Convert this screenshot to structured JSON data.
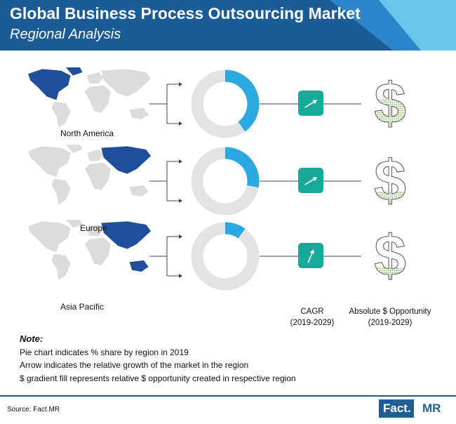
{
  "header": {
    "title": "Global Business Process Outsourcing Market",
    "subtitle": "Regional Analysis",
    "colors": {
      "dark": "#1c5c96",
      "mid": "#2c86c9",
      "light": "#6cc4ea"
    }
  },
  "columns": {
    "cagr": [
      "CAGR",
      "(2019-2029)"
    ],
    "opportunity": [
      "Absolute $ Opportunity",
      "(2019-2029)"
    ]
  },
  "chart_data": {
    "type": "pie",
    "series_name": "% share by region in 2019",
    "categories": [
      "North America",
      "Europe",
      "Asia Pacific"
    ],
    "values": [
      0.4,
      0.28,
      0.1
    ],
    "arrow_growth": [
      0.35,
      0.35,
      0.75
    ],
    "dollar_fill": [
      0.6,
      0.3,
      0.3
    ],
    "colors": {
      "share": "#2aa8e0",
      "rest": "#e3e3e3",
      "arrow_box": "#17a99a",
      "dollar_dots": "#6bb34a",
      "map": "#dcdcdc",
      "map_highlight": "#1f4f9a"
    }
  },
  "notes": {
    "title": "Note:",
    "lines": [
      "Pie chart indicates % share by region in 2019",
      "Arrow indicates the relative growth of the market in the region",
      "$ gradient fill represents relative $ opportunity created in respective region"
    ]
  },
  "footer": {
    "source": "Source: Fact.MR",
    "brand_fact": "Fact.",
    "brand_mr": "MR"
  }
}
